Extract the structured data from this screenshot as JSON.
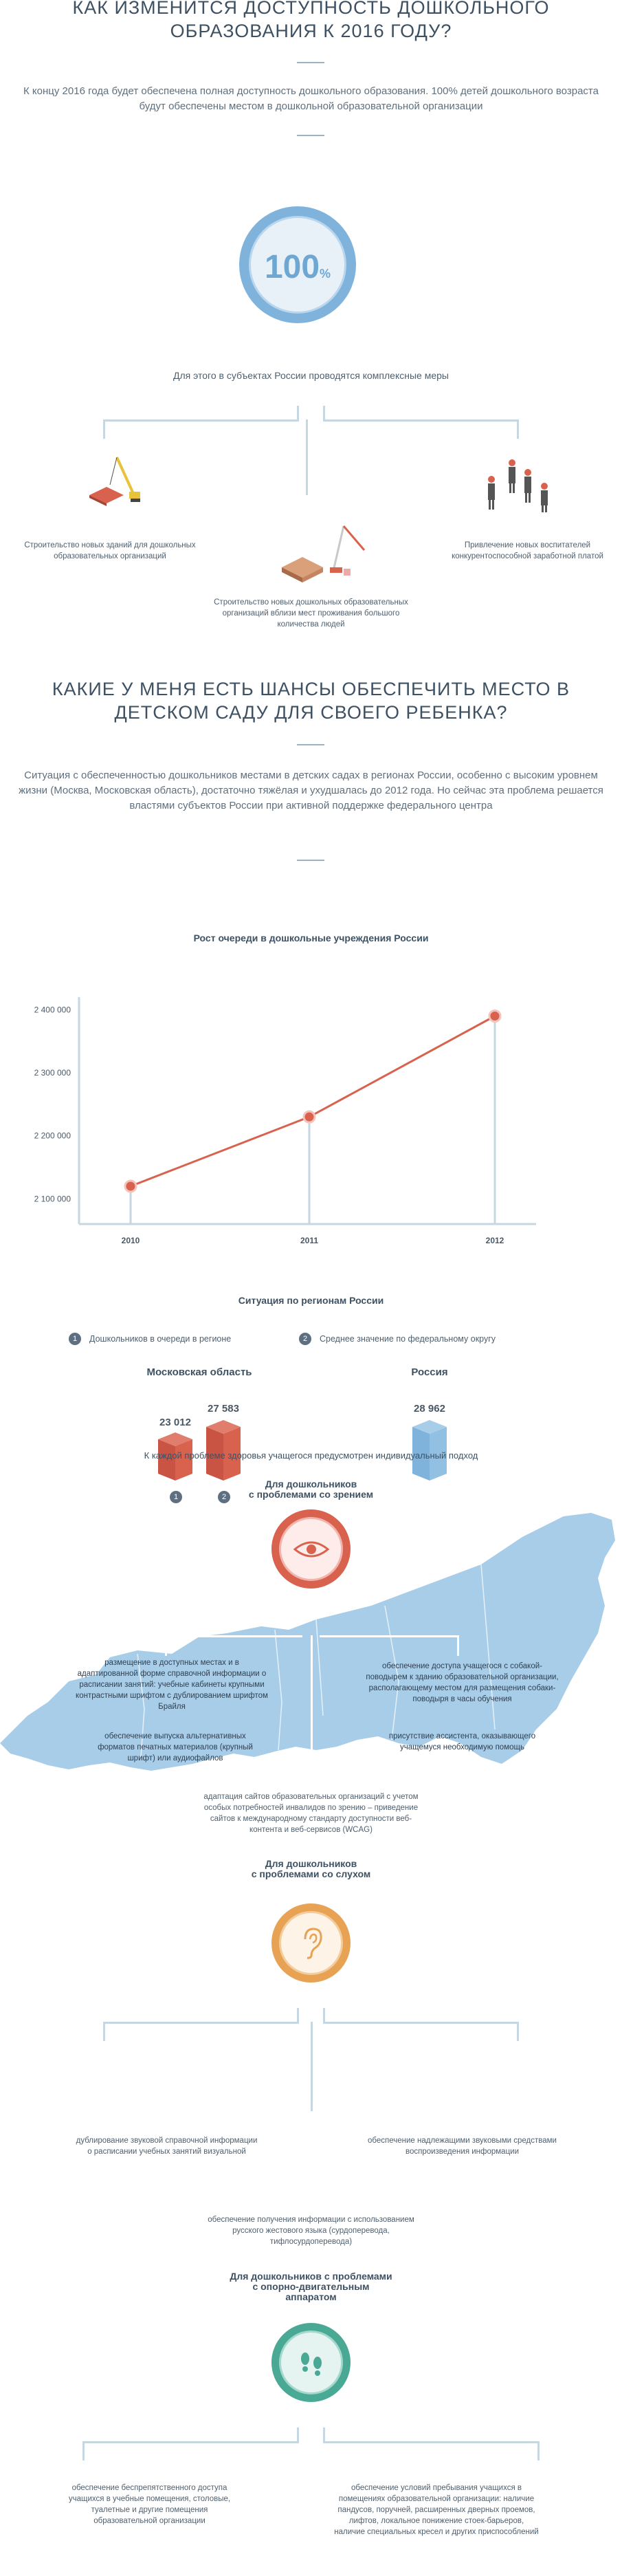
{
  "availability": {
    "title": "КАК ИЗМЕНИТСЯ ДОСТУПНОСТЬ ДОШКОЛЬНОГО ОБРАЗОВАНИЯ К 2016 ГОДУ?",
    "lead": "К концу 2016 года будет обеспечена полная доступность дошкольного образования. 100% детей дошкольного возраста будут обеспечены местом в дошкольной образовательной организации",
    "badge_value": "100",
    "badge_unit": "%",
    "measures_title": "Для этого в субъектах России проводятся комплексные меры",
    "measure_1": "Строительство новых зданий для дошкольных образовательных организаций",
    "measure_2": "Строительство новых дошкольных образовательных организаций вблизи мест проживания большого количества людей",
    "measure_3": "Привлечение новых воспитателей конкурентоспособной заработной платой"
  },
  "chances": {
    "title": "КАКИЕ У МЕНЯ ЕСТЬ ШАНСЫ ОБЕСПЕЧИТЬ МЕСТО В ДЕТСКОМ САДУ ДЛЯ СВОЕГО РЕБЕНКА?",
    "lead": "Ситуация с обеспеченностью дошкольников местами в детских садах в регионах России, особенно с высоким уровнем жизни (Москва, Московская область), достаточно тяжёлая и ухудшалась до 2012 года. Но сейчас эта проблема решается властями субъектов России при активной поддержке федерального центра"
  },
  "chart_data": {
    "type": "line",
    "title": "Рост очереди в дошкольные учреждения России",
    "x": [
      "2010",
      "2011",
      "2012"
    ],
    "series": [
      {
        "values": [
          2120000,
          2230000,
          2390000
        ]
      }
    ],
    "yticks": [
      "2 100 000",
      "2 200 000",
      "2 300 000",
      "2 400 000"
    ],
    "ylim": [
      2060000,
      2420000
    ],
    "color": "#d9624e",
    "grid": false
  },
  "regions": {
    "title": "Ситуация по регионам России",
    "legend_1_num": "1",
    "legend_1": "Дошкольников в очереди в регионе",
    "legend_2_num": "2",
    "legend_2": "Среднее значение по федеральному округу",
    "moscow_label": "Московская область",
    "moscow_val_1": "23 012",
    "moscow_val_2": "27 583",
    "russia_label": "Россия",
    "russia_val": "28 962",
    "bar_1_num": "1",
    "bar_2_num": "2",
    "individual": "К каждой проблеме здоровья учащегося предусмотрен индивидуальный подход"
  },
  "vision": {
    "title_1": "Для дошкольников",
    "title_2": "с проблемами со зрением",
    "item_1": "размещение в доступных местах и в адаптированной форме справочной информации о расписании занятий: учебные кабинеты крупными контрастными шрифтом с дублированием шрифтом Брайля",
    "item_2": "обеспечение доступа учащегося с собакой-поводырем к зданию образовательной организации, располагающему местом для размещения собаки-поводыря в часы обучения",
    "item_3": "обеспечение выпуска альтернативных форматов печатных материалов (крупный шрифт) или аудиофайлов",
    "item_4": "присутствие ассистента, оказывающего учащемуся необходимую помощь",
    "item_5": "адаптация сайтов образовательных организаций с учетом особых потребностей инвалидов по зрению – приведение сайтов к международному стандарту доступности веб-контента и веб-сервисов (WCAG)",
    "color": "#d9624e"
  },
  "hearing": {
    "title_1": "Для дошкольников",
    "title_2": "с проблемами со слухом",
    "item_1": "дублирование звуковой справочной информации о расписании учебных занятий визуальной",
    "item_2": "обеспечение надлежащими звуковыми средствами воспроизведения информации",
    "item_3": "обеспечение получения информации с использованием русского жестового языка (сурдоперевода, тифлосурдоперевода)",
    "color": "#e8a254"
  },
  "motor": {
    "title_1": "Для дошкольников с проблемами",
    "title_2": "с опорно-двигательным",
    "title_3": "аппаратом",
    "item_1": "обеспечение беспрепятственного доступа учащихся в учебные помещения, столовые, туалетные и другие помещения образовательной организации",
    "item_2": "обеспечение условий пребывания учащихся в помещениях образовательной организации: наличие пандусов, поручней, расширенных дверных проемов, лифтов, локальное понижение стоек-барьеров, наличие специальных кресел и других приспособлений",
    "color": "#49a995"
  },
  "icons": [
    "construction-crane-icon",
    "building-site-icon",
    "teachers-icon",
    "eye-icon",
    "ear-icon",
    "footprints-icon",
    "russia-map-icon"
  ]
}
